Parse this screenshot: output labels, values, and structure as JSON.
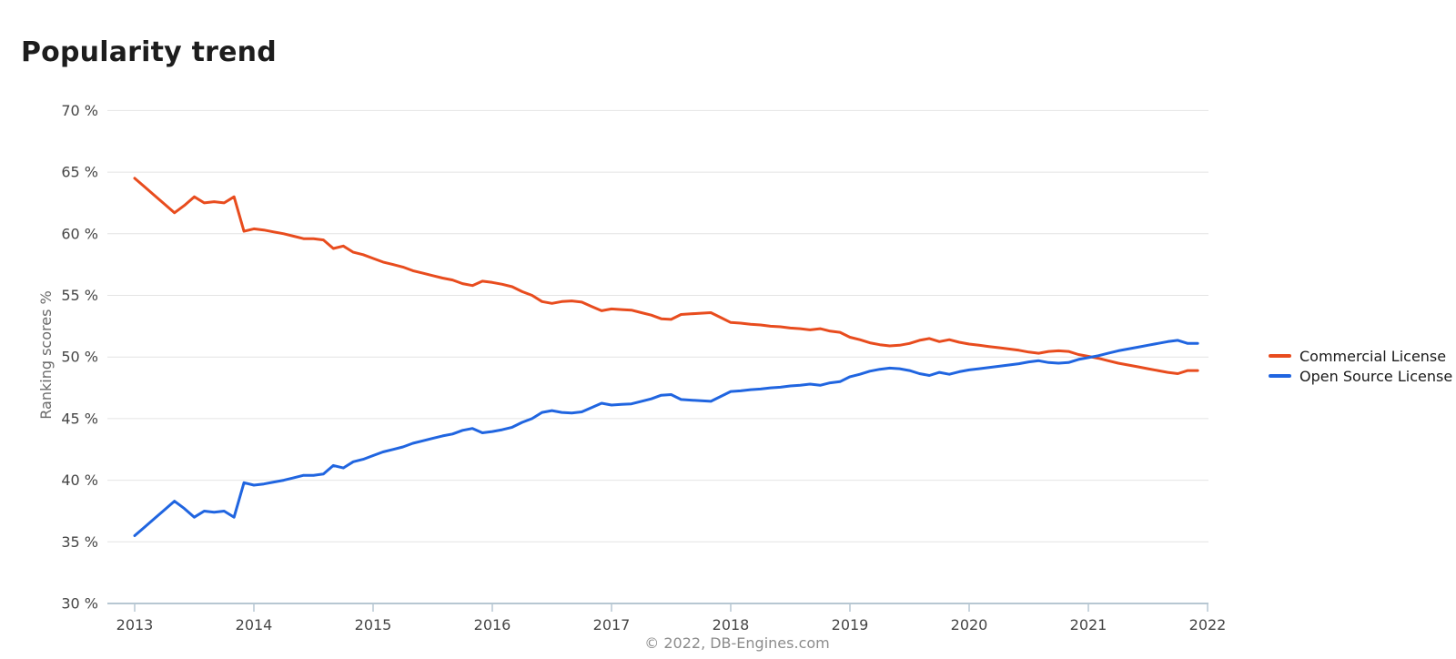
{
  "page": {
    "title": "Popularity trend",
    "copyright": "© 2022, DB-Engines.com"
  },
  "chart_data": {
    "type": "line",
    "title": "Popularity trend",
    "xlabel": "",
    "ylabel": "Ranking scores %",
    "ylim": [
      30,
      70
    ],
    "y_tick_step": 5,
    "y_tick_suffix": " %",
    "y_ticks": [
      30,
      35,
      40,
      45,
      50,
      55,
      60,
      65,
      70
    ],
    "x_ticks": [
      "2013",
      "2014",
      "2015",
      "2016",
      "2017",
      "2018",
      "2019",
      "2020",
      "2021",
      "2022"
    ],
    "x_start_month": "2013-01",
    "x_end_month": "2021-12",
    "points_per_year": 12,
    "grid": true,
    "legend_position": "right",
    "colors": {
      "grid": "#e4e4e4",
      "axis": "#b7c7d2",
      "tick_label": "#464646",
      "axis_title": "#6a6a6a",
      "title": "#1d1d1d",
      "footer": "#8c8c8c",
      "commercial": "#e84c1e",
      "open_source": "#2065e0"
    },
    "series": [
      {
        "name": "Commercial License",
        "color": "#e84c1e",
        "values": [
          64.5,
          63.8,
          63.1,
          62.4,
          61.7,
          62.3,
          63.0,
          62.5,
          62.6,
          62.5,
          63.0,
          60.2,
          60.4,
          60.3,
          60.15,
          60.0,
          59.8,
          59.6,
          59.6,
          59.5,
          58.8,
          59.0,
          58.5,
          58.3,
          58.0,
          57.7,
          57.5,
          57.3,
          57.0,
          56.8,
          56.6,
          56.4,
          56.25,
          55.95,
          55.8,
          56.15,
          56.05,
          55.9,
          55.7,
          55.3,
          55.0,
          54.5,
          54.35,
          54.5,
          54.55,
          54.45,
          54.1,
          53.75,
          53.9,
          53.85,
          53.8,
          53.6,
          53.4,
          53.1,
          53.05,
          53.45,
          53.5,
          53.55,
          53.6,
          53.2,
          52.8,
          52.75,
          52.65,
          52.6,
          52.5,
          52.45,
          52.35,
          52.3,
          52.2,
          52.3,
          52.1,
          52.0,
          51.6,
          51.4,
          51.15,
          51.0,
          50.9,
          50.95,
          51.1,
          51.35,
          51.5,
          51.25,
          51.4,
          51.2,
          51.05,
          50.95,
          50.85,
          50.75,
          50.65,
          50.55,
          50.4,
          50.3,
          50.45,
          50.5,
          50.45,
          50.2,
          50.05,
          49.9,
          49.7,
          49.5,
          49.35,
          49.2,
          49.05,
          48.9,
          48.75,
          48.65,
          48.9,
          48.9
        ]
      },
      {
        "name": "Open Source License",
        "color": "#2065e0",
        "values": [
          35.5,
          36.2,
          36.9,
          37.6,
          38.3,
          37.7,
          37.0,
          37.5,
          37.4,
          37.5,
          37.0,
          39.8,
          39.6,
          39.7,
          39.85,
          40.0,
          40.2,
          40.4,
          40.4,
          40.5,
          41.2,
          41.0,
          41.5,
          41.7,
          42.0,
          42.3,
          42.5,
          42.7,
          43.0,
          43.2,
          43.4,
          43.6,
          43.75,
          44.05,
          44.2,
          43.85,
          43.95,
          44.1,
          44.3,
          44.7,
          45.0,
          45.5,
          45.65,
          45.5,
          45.45,
          45.55,
          45.9,
          46.25,
          46.1,
          46.15,
          46.2,
          46.4,
          46.6,
          46.9,
          46.95,
          46.55,
          46.5,
          46.45,
          46.4,
          46.8,
          47.2,
          47.25,
          47.35,
          47.4,
          47.5,
          47.55,
          47.65,
          47.7,
          47.8,
          47.7,
          47.9,
          48.0,
          48.4,
          48.6,
          48.85,
          49.0,
          49.1,
          49.05,
          48.9,
          48.65,
          48.5,
          48.75,
          48.6,
          48.8,
          48.95,
          49.05,
          49.15,
          49.25,
          49.35,
          49.45,
          49.6,
          49.7,
          49.55,
          49.5,
          49.55,
          49.8,
          49.95,
          50.1,
          50.3,
          50.5,
          50.65,
          50.8,
          50.95,
          51.1,
          51.25,
          51.35,
          51.1,
          51.1
        ]
      }
    ]
  }
}
